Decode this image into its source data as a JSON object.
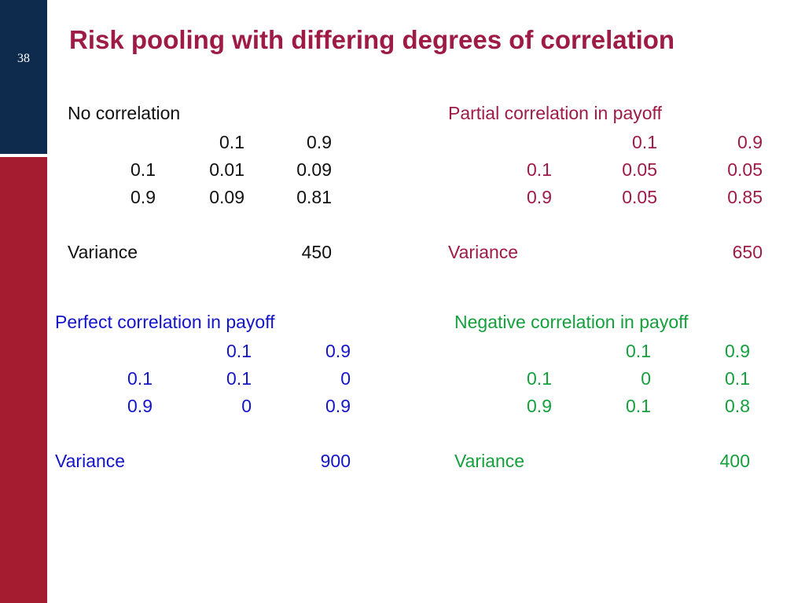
{
  "slide": {
    "page_number": "38",
    "title": "Risk pooling with differing degrees of correlation"
  },
  "colors": {
    "navy_bar": "#0e2a4d",
    "red_bar": "#a51c30",
    "title": "#9e1b46",
    "no_correlation": "#111111",
    "partial": "#9e1b46",
    "perfect": "#1414c8",
    "negative": "#14a03c"
  },
  "blocks": {
    "no_correlation": {
      "label": "No correlation",
      "col_headers": [
        "0.1",
        "0.9"
      ],
      "rows": [
        {
          "header": "0.1",
          "values": [
            "0.01",
            "0.09"
          ]
        },
        {
          "header": "0.9",
          "values": [
            "0.09",
            "0.81"
          ]
        }
      ],
      "variance_label": "Variance",
      "variance_value": "450"
    },
    "partial": {
      "label": "Partial correlation in payoff",
      "col_headers": [
        "0.1",
        "0.9"
      ],
      "rows": [
        {
          "header": "0.1",
          "values": [
            "0.05",
            "0.05"
          ]
        },
        {
          "header": "0.9",
          "values": [
            "0.05",
            "0.85"
          ]
        }
      ],
      "variance_label": "Variance",
      "variance_value": "650"
    },
    "perfect": {
      "label": "Perfect correlation in payoff",
      "col_headers": [
        "0.1",
        "0.9"
      ],
      "rows": [
        {
          "header": "0.1",
          "values": [
            "0.1",
            "0"
          ]
        },
        {
          "header": "0.9",
          "values": [
            "0",
            "0.9"
          ]
        }
      ],
      "variance_label": "Variance",
      "variance_value": "900"
    },
    "negative": {
      "label": "Negative correlation in payoff",
      "col_headers": [
        "0.1",
        "0.9"
      ],
      "rows": [
        {
          "header": "0.1",
          "values": [
            "0",
            "0.1"
          ]
        },
        {
          "header": "0.9",
          "values": [
            "0.1",
            "0.8"
          ]
        }
      ],
      "variance_label": "Variance",
      "variance_value": "400"
    }
  }
}
